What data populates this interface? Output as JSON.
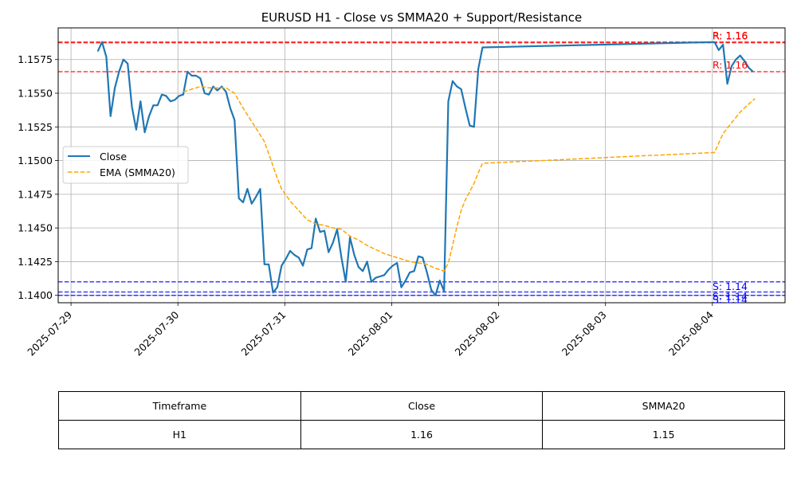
{
  "chart_data": {
    "type": "line",
    "title": "EURUSD H1 - Close vs SMMA20 + Support/Resistance",
    "xlabel": "",
    "ylabel": "",
    "x_ticks": [
      "2025-07-29",
      "2025-07-30",
      "2025-07-31",
      "2025-08-01",
      "2025-08-02",
      "2025-08-03",
      "2025-08-04"
    ],
    "y_ticks": [
      "1.1400",
      "1.1425",
      "1.1450",
      "1.1475",
      "1.1500",
      "1.1525",
      "1.1550",
      "1.1575"
    ],
    "xlim_days": [
      -0.12,
      6.68
    ],
    "ylim": [
      1.13945,
      1.15985
    ],
    "grid": true,
    "legend_position": "center-left",
    "series": [
      {
        "name": "Close",
        "color": "#1f77b4",
        "style": "solid",
        "points": [
          [
            0.25,
            1.1581
          ],
          [
            0.29,
            1.1588
          ],
          [
            0.33,
            1.1577
          ],
          [
            0.37,
            1.1533
          ],
          [
            0.41,
            1.1554
          ],
          [
            0.45,
            1.1566
          ],
          [
            0.49,
            1.1575
          ],
          [
            0.53,
            1.1572
          ],
          [
            0.57,
            1.154
          ],
          [
            0.61,
            1.1523
          ],
          [
            0.65,
            1.1544
          ],
          [
            0.69,
            1.1521
          ],
          [
            0.73,
            1.1533
          ],
          [
            0.77,
            1.1541
          ],
          [
            0.81,
            1.1541
          ],
          [
            0.85,
            1.1549
          ],
          [
            0.89,
            1.1548
          ],
          [
            0.93,
            1.1544
          ],
          [
            0.97,
            1.1545
          ],
          [
            1.01,
            1.1548
          ],
          [
            1.05,
            1.1549
          ],
          [
            1.09,
            1.1566
          ],
          [
            1.13,
            1.1563
          ],
          [
            1.17,
            1.1563
          ],
          [
            1.21,
            1.1561
          ],
          [
            1.25,
            1.155
          ],
          [
            1.29,
            1.1549
          ],
          [
            1.33,
            1.1555
          ],
          [
            1.37,
            1.1552
          ],
          [
            1.41,
            1.1555
          ],
          [
            1.45,
            1.1551
          ],
          [
            1.49,
            1.1539
          ],
          [
            1.53,
            1.153
          ],
          [
            1.57,
            1.1472
          ],
          [
            1.61,
            1.1469
          ],
          [
            1.65,
            1.1479
          ],
          [
            1.69,
            1.1468
          ],
          [
            1.73,
            1.1473
          ],
          [
            1.77,
            1.1479
          ],
          [
            1.81,
            1.1423
          ],
          [
            1.85,
            1.1423
          ],
          [
            1.89,
            1.1402
          ],
          [
            1.93,
            1.1406
          ],
          [
            1.97,
            1.1422
          ],
          [
            2.01,
            1.1427
          ],
          [
            2.05,
            1.1433
          ],
          [
            2.09,
            1.143
          ],
          [
            2.13,
            1.1428
          ],
          [
            2.17,
            1.1422
          ],
          [
            2.21,
            1.1434
          ],
          [
            2.25,
            1.1435
          ],
          [
            2.29,
            1.1457
          ],
          [
            2.33,
            1.1447
          ],
          [
            2.37,
            1.1448
          ],
          [
            2.41,
            1.1432
          ],
          [
            2.45,
            1.1439
          ],
          [
            2.49,
            1.1449
          ],
          [
            2.53,
            1.1428
          ],
          [
            2.57,
            1.141
          ],
          [
            2.61,
            1.1443
          ],
          [
            2.65,
            1.143
          ],
          [
            2.69,
            1.1421
          ],
          [
            2.73,
            1.1418
          ],
          [
            2.77,
            1.1425
          ],
          [
            2.81,
            1.141
          ],
          [
            2.85,
            1.1413
          ],
          [
            2.89,
            1.1414
          ],
          [
            2.93,
            1.1415
          ],
          [
            2.97,
            1.1419
          ],
          [
            3.01,
            1.1422
          ],
          [
            3.05,
            1.1424
          ],
          [
            3.09,
            1.1406
          ],
          [
            3.13,
            1.1411
          ],
          [
            3.17,
            1.1417
          ],
          [
            3.21,
            1.1418
          ],
          [
            3.25,
            1.1429
          ],
          [
            3.29,
            1.1428
          ],
          [
            3.33,
            1.1417
          ],
          [
            3.37,
            1.1404
          ],
          [
            3.41,
            1.14
          ],
          [
            3.45,
            1.1411
          ],
          [
            3.49,
            1.1403
          ],
          [
            3.53,
            1.1544
          ],
          [
            3.57,
            1.1559
          ],
          [
            3.61,
            1.1555
          ],
          [
            3.65,
            1.1553
          ],
          [
            3.69,
            1.1539
          ],
          [
            3.73,
            1.1526
          ],
          [
            3.77,
            1.1525
          ],
          [
            3.81,
            1.1568
          ],
          [
            3.85,
            1.1584
          ],
          [
            6.02,
            1.1588
          ],
          [
            6.06,
            1.1582
          ],
          [
            6.1,
            1.1586
          ],
          [
            6.14,
            1.1557
          ],
          [
            6.18,
            1.157
          ],
          [
            6.22,
            1.1575
          ],
          [
            6.26,
            1.1578
          ],
          [
            6.3,
            1.1574
          ],
          [
            6.34,
            1.1569
          ],
          [
            6.38,
            1.1566
          ]
        ]
      },
      {
        "name": "EMA (SMMA20)",
        "color": "#ffa500",
        "style": "dashed",
        "points": [
          [
            1.05,
            1.1551
          ],
          [
            1.13,
            1.1553
          ],
          [
            1.21,
            1.1555
          ],
          [
            1.29,
            1.1554
          ],
          [
            1.37,
            1.1554
          ],
          [
            1.45,
            1.1554
          ],
          [
            1.53,
            1.155
          ],
          [
            1.61,
            1.1539
          ],
          [
            1.69,
            1.1529
          ],
          [
            1.77,
            1.1519
          ],
          [
            1.81,
            1.1514
          ],
          [
            1.85,
            1.1505
          ],
          [
            1.89,
            1.1496
          ],
          [
            1.93,
            1.1487
          ],
          [
            1.97,
            1.1479
          ],
          [
            2.05,
            1.147
          ],
          [
            2.13,
            1.1463
          ],
          [
            2.21,
            1.1456
          ],
          [
            2.29,
            1.1453
          ],
          [
            2.37,
            1.1452
          ],
          [
            2.45,
            1.145
          ],
          [
            2.53,
            1.1449
          ],
          [
            2.61,
            1.1444
          ],
          [
            2.69,
            1.1441
          ],
          [
            2.77,
            1.1437
          ],
          [
            2.85,
            1.1434
          ],
          [
            2.93,
            1.1431
          ],
          [
            3.01,
            1.1429
          ],
          [
            3.09,
            1.1427
          ],
          [
            3.17,
            1.1425
          ],
          [
            3.25,
            1.1424
          ],
          [
            3.33,
            1.1423
          ],
          [
            3.41,
            1.142
          ],
          [
            3.49,
            1.1418
          ],
          [
            3.53,
            1.1424
          ],
          [
            3.57,
            1.1437
          ],
          [
            3.61,
            1.1451
          ],
          [
            3.65,
            1.1463
          ],
          [
            3.69,
            1.1471
          ],
          [
            3.73,
            1.1477
          ],
          [
            3.77,
            1.1483
          ],
          [
            3.81,
            1.1491
          ],
          [
            3.85,
            1.1498
          ],
          [
            6.02,
            1.1506
          ],
          [
            6.1,
            1.152
          ],
          [
            6.18,
            1.1528
          ],
          [
            6.26,
            1.1536
          ],
          [
            6.34,
            1.1542
          ],
          [
            6.4,
            1.1546
          ]
        ]
      }
    ],
    "levels": [
      {
        "kind": "resistance",
        "value": 1.1588,
        "label": "R: 1.16",
        "color": "#ff0000"
      },
      {
        "kind": "resistance",
        "value": 1.15875,
        "label": "R: 1.16",
        "color": "#ff0000"
      },
      {
        "kind": "resistance",
        "value": 1.1566,
        "label": "R: 1.16",
        "color": "#ff0000"
      },
      {
        "kind": "support",
        "value": 1.141,
        "label": "S: 1.14",
        "color": "#0000ff"
      },
      {
        "kind": "support",
        "value": 1.14025,
        "label": "S: 1.14",
        "color": "#0000ff"
      },
      {
        "kind": "support",
        "value": 1.14,
        "label": "S: 1.14",
        "color": "#0000ff"
      }
    ]
  },
  "table": {
    "headers": [
      "Timeframe",
      "Close",
      "SMMA20"
    ],
    "row": [
      "H1",
      "1.16",
      "1.15"
    ]
  }
}
